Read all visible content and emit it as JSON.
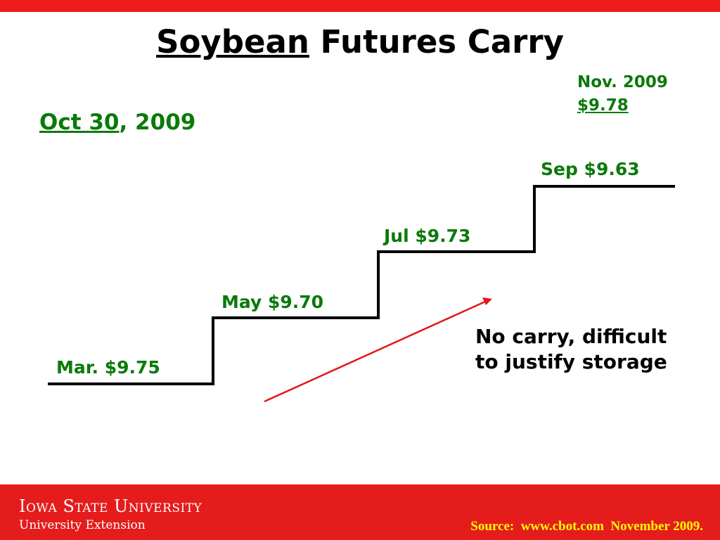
{
  "title": {
    "underlined": "Soybean",
    "rest": " Futures Carry"
  },
  "date": {
    "underlined": "Oct 30",
    "rest": ", 2009"
  },
  "nov": {
    "line1": "Nov. 2009",
    "line2": "$9.78"
  },
  "steps": [
    {
      "label": "Mar. $9.75"
    },
    {
      "label": "May $9.70"
    },
    {
      "label": "Jul $9.73"
    },
    {
      "label": "Sep $9.63"
    }
  ],
  "note": {
    "line1": "No carry, difficult",
    "line2": "to justify storage"
  },
  "footer": {
    "university": "Iowa State University",
    "extension": "University Extension",
    "source": "Source:  www.cbot.com  November 2009."
  },
  "colors": {
    "accent_red": "#e51c1c",
    "label_green": "#0a7a0a",
    "source_yellow": "#ffff00",
    "arrow": "#e01818"
  }
}
